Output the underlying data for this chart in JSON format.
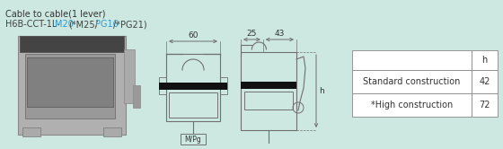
{
  "bg_color": "#cde8e0",
  "title_line1": "Cable to cable(1 lever)",
  "title_line2_parts": [
    {
      "text": "H6B-CCT-1L-",
      "color": "#404040"
    },
    {
      "text": "M20",
      "color": "#3399cc"
    },
    {
      "text": "(*M25/",
      "color": "#404040"
    },
    {
      "text": "PG16",
      "color": "#3399cc"
    },
    {
      "text": "/*PG21)",
      "color": "#404040"
    }
  ],
  "table_rows": [
    [
      "",
      "h"
    ],
    [
      "Standard construction",
      "42"
    ],
    [
      "*High construction",
      "72"
    ]
  ],
  "dim1_label": "60",
  "dim2_label": "25",
  "dim3_label": "43",
  "mpg_label": "M/Pg",
  "h_label": "h"
}
